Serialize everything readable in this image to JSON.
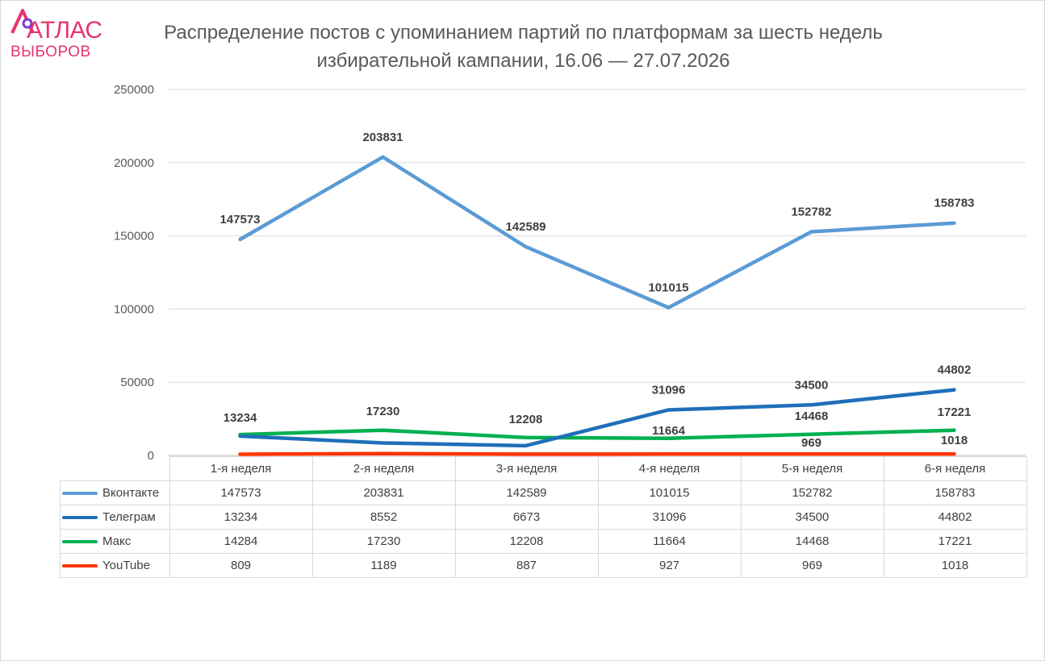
{
  "logo": {
    "main": "АТЛАС",
    "sub": "ВЫБОРОВ"
  },
  "chart_data": {
    "type": "line",
    "title": "Распределение постов с упоминанием партий по платформам за шесть недель избирательной кампании, 16.06 — 27.07.2026",
    "xlabel": "",
    "ylabel": "",
    "ylim": [
      0,
      250000
    ],
    "yticks": [
      0,
      50000,
      100000,
      150000,
      200000,
      250000
    ],
    "grid": true,
    "legend": "data-table",
    "categories": [
      "1-я неделя",
      "2-я неделя",
      "3-я неделя",
      "4-я неделя",
      "5-я неделя",
      "6-я неделя"
    ],
    "series": [
      {
        "name": "Вконтакте",
        "color": "#5b9bd5",
        "values": [
          147573,
          203831,
          142589,
          101015,
          152782,
          158783
        ],
        "labels": [
          "147573",
          "203831",
          "142589",
          "101015",
          "152782",
          "158783"
        ]
      },
      {
        "name": "Телеграм",
        "color": "#1f6fb8",
        "values": [
          13234,
          8552,
          6673,
          31096,
          34500,
          44802
        ],
        "labels": [
          "13234",
          "",
          "",
          "31096",
          "34500",
          "44802"
        ]
      },
      {
        "name": "Макс",
        "color": "#00b050",
        "values": [
          14284,
          17230,
          12208,
          11664,
          14468,
          17221
        ],
        "labels": [
          "",
          "17230",
          "12208",
          "11664",
          "14468",
          "17221"
        ]
      },
      {
        "name": "YouTube",
        "color": "#ff3300",
        "values": [
          809,
          1189,
          887,
          927,
          969,
          1018
        ],
        "labels": [
          "",
          "",
          "",
          "",
          "969",
          "1018"
        ]
      }
    ]
  }
}
